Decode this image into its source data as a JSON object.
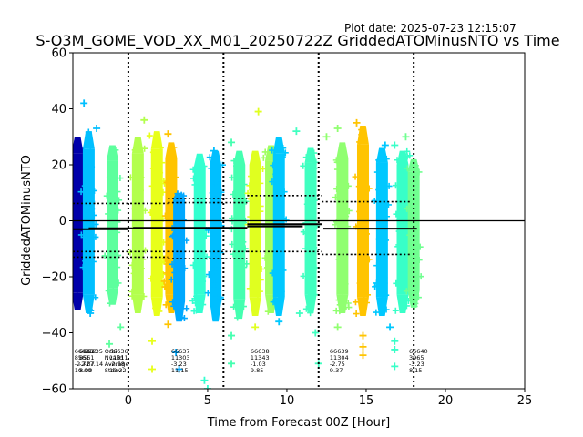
{
  "plot_date": "Plot date: 2025-07-23 12:15:07",
  "chart_data": {
    "type": "scatter",
    "title": "S-O3M_GOME_VOD_XX_M01_20250722Z GriddedATOMinusNTO vs Time",
    "xlabel": "Time from Forecast 00Z [Hour]",
    "ylabel": "GriddedATOMinusNTO",
    "xlim": [
      -3.5,
      25
    ],
    "ylim": [
      -60,
      60
    ],
    "xticks": [
      0,
      5,
      10,
      15,
      20,
      25
    ],
    "yticks": [
      -60,
      -40,
      -20,
      0,
      20,
      40,
      60
    ],
    "grid": false,
    "legend": "none",
    "forecast_boundaries": [
      0,
      6,
      12,
      18
    ],
    "zero_line": 0,
    "swaths": [
      {
        "x": -3.2,
        "lo": -32,
        "hi": 30,
        "color": "#0000aa"
      },
      {
        "x": -2.5,
        "lo": -33,
        "hi": 32,
        "color": "#00bfff"
      },
      {
        "x": -1.0,
        "lo": -30,
        "hi": 27,
        "color": "#5dff9d"
      },
      {
        "x": 0.6,
        "lo": -33,
        "hi": 30,
        "color": "#b3ff4d"
      },
      {
        "x": 1.8,
        "lo": -34,
        "hi": 32,
        "color": "#e8ff1a"
      },
      {
        "x": 2.7,
        "lo": -33,
        "hi": 28,
        "color": "#ffc400"
      },
      {
        "x": 3.2,
        "lo": -36,
        "hi": 10,
        "color": "#00a8ff"
      },
      {
        "x": 4.5,
        "lo": -33,
        "hi": 24,
        "color": "#33ffd0"
      },
      {
        "x": 5.5,
        "lo": -36,
        "hi": 25,
        "color": "#00bfff"
      },
      {
        "x": 7.0,
        "lo": -35,
        "hi": 25,
        "color": "#44ffb0"
      },
      {
        "x": 8.0,
        "lo": -34,
        "hi": 25,
        "color": "#e0ff20"
      },
      {
        "x": 9.0,
        "lo": -33,
        "hi": 27,
        "color": "#a0ff60"
      },
      {
        "x": 9.5,
        "lo": -34,
        "hi": 30,
        "color": "#00c8ff"
      },
      {
        "x": 11.5,
        "lo": -33,
        "hi": 26,
        "color": "#40ffc0"
      },
      {
        "x": 13.5,
        "lo": -33,
        "hi": 28,
        "color": "#90ff70"
      },
      {
        "x": 14.8,
        "lo": -34,
        "hi": 34,
        "color": "#ffc400"
      },
      {
        "x": 16.0,
        "lo": -34,
        "hi": 26,
        "color": "#00c8ff"
      },
      {
        "x": 17.3,
        "lo": -33,
        "hi": 25,
        "color": "#38ffc8"
      },
      {
        "x": 18.0,
        "lo": -31,
        "hi": 22,
        "color": "#70ff90"
      }
    ],
    "outliers": [
      {
        "x": -2.8,
        "y": 42,
        "color": "#00bfff"
      },
      {
        "x": -2.0,
        "y": 33,
        "color": "#00bfff"
      },
      {
        "x": -2.4,
        "y": -33,
        "color": "#00bfff"
      },
      {
        "x": -1.2,
        "y": -44,
        "color": "#5dff9d"
      },
      {
        "x": -0.5,
        "y": -38,
        "color": "#5dff9d"
      },
      {
        "x": 1.0,
        "y": 36,
        "color": "#b3ff4d"
      },
      {
        "x": 1.5,
        "y": -43,
        "color": "#e8ff1a"
      },
      {
        "x": 1.5,
        "y": -53,
        "color": "#e8ff1a"
      },
      {
        "x": 2.5,
        "y": 31,
        "color": "#ffc400"
      },
      {
        "x": 2.5,
        "y": -37,
        "color": "#ffc400"
      },
      {
        "x": 3.0,
        "y": -47,
        "color": "#00a8ff"
      },
      {
        "x": 3.2,
        "y": -53,
        "color": "#00a8ff"
      },
      {
        "x": 4.8,
        "y": -57,
        "color": "#33ffd0"
      },
      {
        "x": 5.0,
        "y": -60,
        "color": "#33ffd0"
      },
      {
        "x": 5.4,
        "y": 25,
        "color": "#00bfff"
      },
      {
        "x": 6.5,
        "y": 28,
        "color": "#44ffb0"
      },
      {
        "x": 6.5,
        "y": -41,
        "color": "#44ffb0"
      },
      {
        "x": 6.5,
        "y": -51,
        "color": "#44ffb0"
      },
      {
        "x": 8.2,
        "y": 39,
        "color": "#e0ff20"
      },
      {
        "x": 8.0,
        "y": -38,
        "color": "#e0ff20"
      },
      {
        "x": 9.5,
        "y": -36,
        "color": "#00c8ff"
      },
      {
        "x": 10.6,
        "y": 32,
        "color": "#40ffc0"
      },
      {
        "x": 10.8,
        "y": -33,
        "color": "#40ffc0"
      },
      {
        "x": 11.8,
        "y": -40,
        "color": "#40ffc0"
      },
      {
        "x": 12.0,
        "y": -51,
        "color": "#40ffc0"
      },
      {
        "x": 12.5,
        "y": 30,
        "color": "#90ff70"
      },
      {
        "x": 13.2,
        "y": 33,
        "color": "#90ff70"
      },
      {
        "x": 13.2,
        "y": -38,
        "color": "#90ff70"
      },
      {
        "x": 14.4,
        "y": 35,
        "color": "#ffc400"
      },
      {
        "x": 14.8,
        "y": -45,
        "color": "#ffc400"
      },
      {
        "x": 14.8,
        "y": -48,
        "color": "#ffc400"
      },
      {
        "x": 14.8,
        "y": -41,
        "color": "#ffc400"
      },
      {
        "x": 16.2,
        "y": 27,
        "color": "#00c8ff"
      },
      {
        "x": 16.5,
        "y": -38,
        "color": "#00c8ff"
      },
      {
        "x": 16.8,
        "y": 27,
        "color": "#38ffc8"
      },
      {
        "x": 16.8,
        "y": -43,
        "color": "#38ffc8"
      },
      {
        "x": 16.8,
        "y": -46,
        "color": "#38ffc8"
      },
      {
        "x": 16.8,
        "y": -52,
        "color": "#38ffc8"
      },
      {
        "x": 17.5,
        "y": 30,
        "color": "#70ff90"
      }
    ],
    "mean_segments": [
      {
        "x0": -3.5,
        "x1": 0,
        "y": -3
      },
      {
        "x0": -2.5,
        "x1": 2.8,
        "y": -2.7
      },
      {
        "x0": 0.3,
        "x1": 7.5,
        "y": -2.5
      },
      {
        "x0": 7.5,
        "x1": 12.2,
        "y": -1.2
      },
      {
        "x0": 7.5,
        "x1": 11,
        "y": -2
      },
      {
        "x0": 12.3,
        "x1": 18.2,
        "y": -2.8
      }
    ],
    "std_segments": [
      {
        "x0": -3.5,
        "x1": 2.5,
        "y": 6.2
      },
      {
        "x0": -3.5,
        "x1": 2.5,
        "y": -13
      },
      {
        "x0": -3.5,
        "x1": 2.5,
        "y": -11
      },
      {
        "x0": 2.5,
        "x1": 7.5,
        "y": 8
      },
      {
        "x0": 2.5,
        "x1": 7.5,
        "y": 6.5
      },
      {
        "x0": 2.5,
        "x1": 7.5,
        "y": -13.5
      },
      {
        "x0": 2.5,
        "x1": 7.5,
        "y": -11
      },
      {
        "x0": 7.5,
        "x1": 12.2,
        "y": 9
      },
      {
        "x0": 7.5,
        "x1": 12.2,
        "y": -11
      },
      {
        "x0": 12.2,
        "x1": 17.8,
        "y": 6.8
      },
      {
        "x0": 12.2,
        "x1": 17.8,
        "y": -12
      }
    ],
    "stat_blocks": [
      {
        "x": -3.4,
        "lines": [
          "66635",
          "8561",
          "-2.77",
          "10.00"
        ]
      },
      {
        "x": -3.1,
        "lines": [
          "66635",
          "8561",
          "-2.37",
          "8.00"
        ]
      },
      {
        "x": -2.8,
        "lines": [
          "66635",
          "",
          "-17.14",
          ""
        ]
      },
      {
        "x": -1.5,
        "lines": [
          "Orbit",
          "Nvalid",
          "Average",
          "Stdev"
        ]
      },
      {
        "x": -1.2,
        "lines": [
          "66636",
          "11311",
          "-2.68",
          "10.22"
        ]
      },
      {
        "x": 2.7,
        "lines": [
          "66637",
          "11303",
          "-3.23",
          "11.15"
        ]
      },
      {
        "x": 7.7,
        "lines": [
          "66638",
          "11343",
          "-1.03",
          "9.85"
        ]
      },
      {
        "x": 12.7,
        "lines": [
          "66639",
          "11304",
          "-2.75",
          "9.37"
        ]
      },
      {
        "x": 17.7,
        "lines": [
          "66640",
          "3965",
          "-3.23",
          "8.15"
        ]
      }
    ]
  }
}
